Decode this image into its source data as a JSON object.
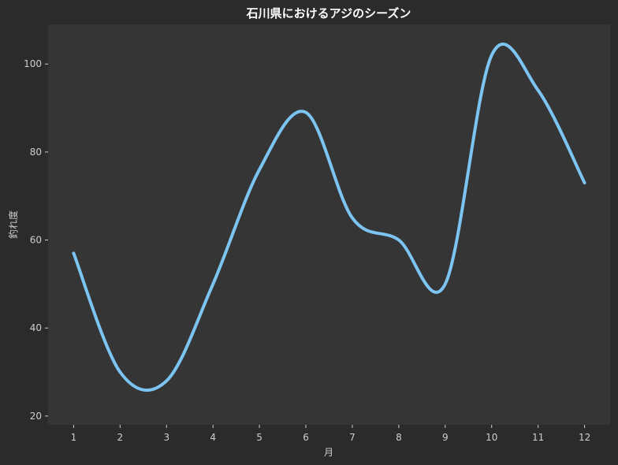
{
  "colors": {
    "background": "#2b2b2b",
    "plot_background": "#353535",
    "line": "#7cc4f2",
    "text": "#cfcfcf",
    "title": "#ffffff"
  },
  "chart_data": {
    "type": "line",
    "title": "石川県におけるアジのシーズン",
    "xlabel": "月",
    "ylabel": "釣れ度",
    "x": [
      1,
      2,
      3,
      4,
      5,
      6,
      7,
      8,
      9,
      10,
      11,
      12
    ],
    "x_tick_labels": [
      "1",
      "2",
      "3",
      "4",
      "5",
      "6",
      "7",
      "8",
      "9",
      "10",
      "11",
      "12"
    ],
    "y_tick_values": [
      20,
      40,
      60,
      80,
      100
    ],
    "y_tick_labels": [
      "20",
      "40",
      "60",
      "80",
      "100"
    ],
    "xlim": [
      0.45,
      12.55
    ],
    "ylim": [
      18,
      109
    ],
    "grid": false,
    "legend": "none",
    "smoothed": true,
    "series": [
      {
        "values": [
          57,
          30,
          28,
          50,
          76,
          89,
          65,
          60,
          50,
          102,
          94,
          73
        ]
      }
    ]
  }
}
